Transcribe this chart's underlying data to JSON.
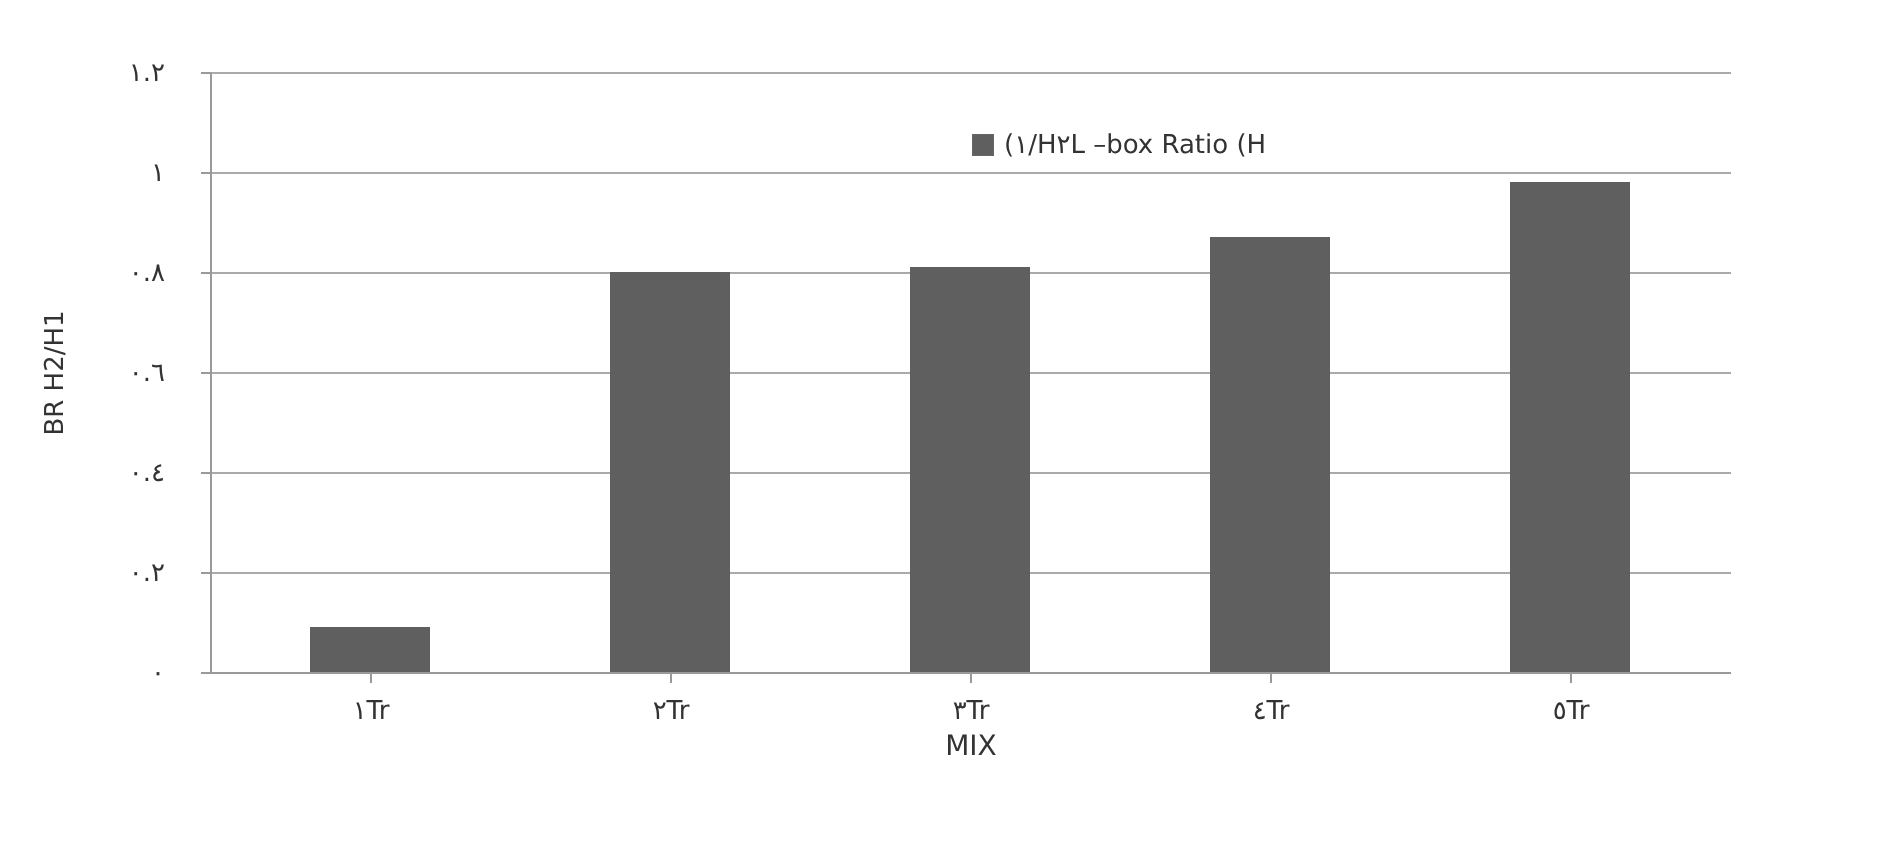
{
  "chart_data": {
    "type": "bar",
    "ylabel": "BR H2/H1",
    "xlabel": "MIX",
    "categories": [
      "١Tr",
      "٢Tr",
      "٣Tr",
      "٤Tr",
      "٥Tr"
    ],
    "series": [
      {
        "name": "(١/H٢L –box Ratio (H",
        "color": "#5f5f5f",
        "values": [
          0.09,
          0.8,
          0.81,
          0.87,
          0.98
        ]
      }
    ],
    "ylim": [
      0,
      1.2
    ],
    "yticks": [
      {
        "value": 0,
        "label": "٠"
      },
      {
        "value": 0.2,
        "label": "٠.٢"
      },
      {
        "value": 0.4,
        "label": "٠.٤"
      },
      {
        "value": 0.6,
        "label": "٠.٦"
      },
      {
        "value": 0.8,
        "label": "٠.٨"
      },
      {
        "value": 1,
        "label": "١"
      },
      {
        "value": 1.2,
        "label": "١.٢"
      }
    ],
    "grid": "y",
    "legend": "top right"
  }
}
